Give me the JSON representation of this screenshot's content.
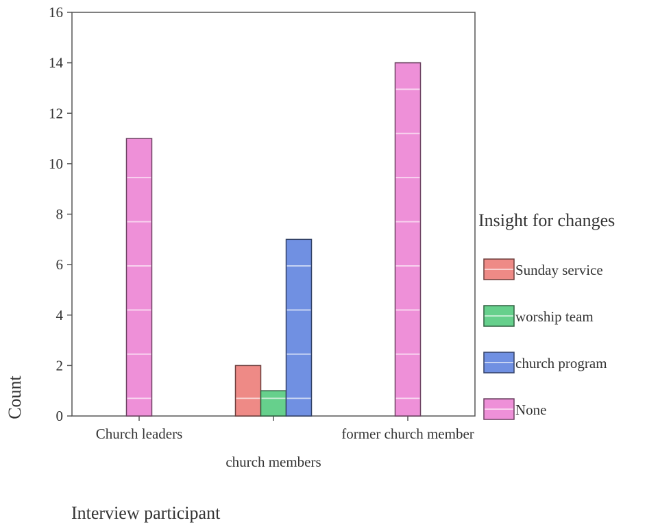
{
  "chart_data": {
    "type": "bar",
    "title": "",
    "xlabel": "Interview participant",
    "ylabel": "Count",
    "ylim": [
      0,
      16
    ],
    "yticks": [
      0,
      2,
      4,
      6,
      8,
      10,
      12,
      14,
      16
    ],
    "categories": [
      "Church leaders",
      "church members",
      "former church member"
    ],
    "legend": {
      "title": "Insight for changes",
      "position": "right"
    },
    "series": [
      {
        "name": "Sunday service",
        "color": "#ee8a86",
        "values": [
          0,
          2,
          0
        ]
      },
      {
        "name": "worship team",
        "color": "#66d08c",
        "values": [
          0,
          1,
          0
        ]
      },
      {
        "name": "church program",
        "color": "#7090e2",
        "values": [
          0,
          7,
          0
        ]
      },
      {
        "name": "None",
        "color": "#ee90d8",
        "values": [
          11,
          0,
          14
        ]
      }
    ],
    "grid": false
  }
}
